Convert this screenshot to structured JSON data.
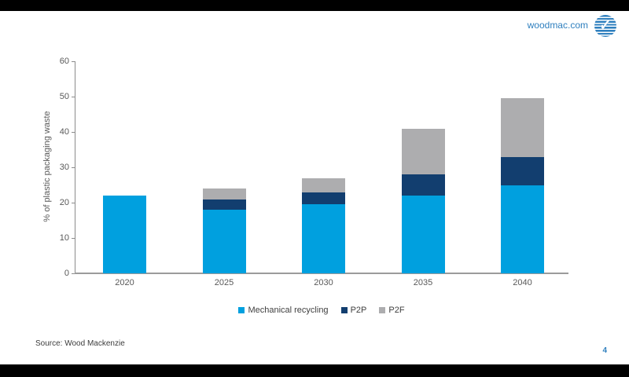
{
  "header": {
    "site_label": "woodmac.com"
  },
  "chart_data": {
    "type": "bar",
    "stacked": true,
    "title": "",
    "categories": [
      "2020",
      "2025",
      "2030",
      "2035",
      "2040"
    ],
    "series": [
      {
        "name": "Mechanical recycling",
        "color": "#00a0df",
        "values": [
          22,
          18,
          19.5,
          22,
          25
        ]
      },
      {
        "name": "P2P",
        "color": "#123e6f",
        "values": [
          0,
          3,
          3.5,
          6,
          8
        ]
      },
      {
        "name": "P2F",
        "color": "#adadaf",
        "values": [
          0,
          3,
          4,
          13,
          16.5
        ]
      }
    ],
    "xlabel": "",
    "ylabel": "% of plastic packaging waste",
    "ylim": [
      0,
      60
    ],
    "ytick_step": 10,
    "grid": false,
    "legend_position": "bottom"
  },
  "footer": {
    "source": "Source: Wood Mackenzie",
    "page_number": "4"
  }
}
